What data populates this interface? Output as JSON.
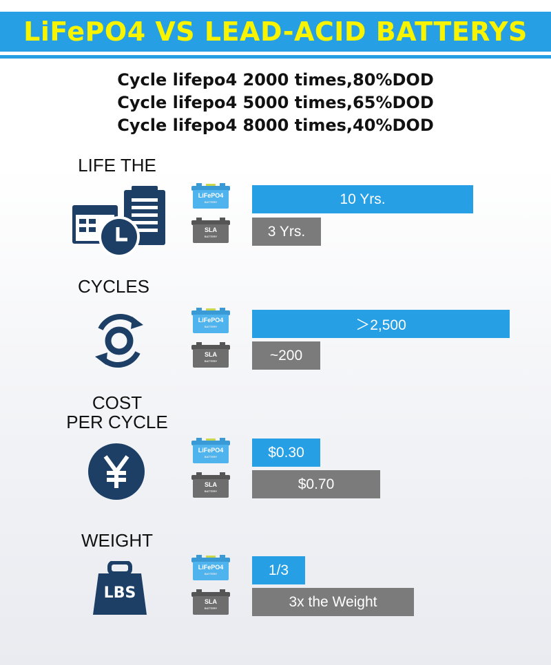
{
  "title": "LiFePO4 VS LEAD-ACID BATTERYS",
  "subtitle_lines": [
    "Cycle lifepo4 2000 times,80%DOD",
    "Cycle lifepo4 5000 times,65%DOD",
    "Cycle lifepo4 8000 times,40%DOD"
  ],
  "battery_labels": {
    "lifepo4": "LiFePO4",
    "sla": "SLA",
    "sub": "BATTERY"
  },
  "colors": {
    "lifepo4": "#279fe5",
    "sla": "#7b7b7b",
    "icon": "#1d3f66",
    "title": "#f8f400"
  },
  "sections": [
    {
      "label": "LIFE THE",
      "icon": "calendar-clipboard-clock-icon",
      "lifepo4": "10 Yrs.",
      "sla": "3 Yrs."
    },
    {
      "label": "CYCLES",
      "icon": "cycle-icon",
      "lifepo4": "＞2,500",
      "sla": "~200"
    },
    {
      "label_line1": "COST",
      "label_line2": "PER CYCLE",
      "icon": "yen-coin-icon",
      "lifepo4": "$0.30",
      "sla": "$0.70"
    },
    {
      "label": "WEIGHT",
      "icon": "weight-lbs-icon",
      "icon_text": "LBS",
      "lifepo4": "1/3",
      "sla": "3x the Weight"
    }
  ],
  "chart_data": {
    "type": "bar",
    "orientation": "horizontal",
    "categories": [
      "LIFE THE",
      "CYCLES",
      "COST PER CYCLE",
      "WEIGHT"
    ],
    "series": [
      {
        "name": "LiFePO4",
        "values": [
          10,
          2500,
          0.3,
          1
        ],
        "labels": [
          "10 Yrs.",
          "＞2,500",
          "$0.30",
          "1/3"
        ]
      },
      {
        "name": "SLA",
        "values": [
          3,
          200,
          0.7,
          3
        ],
        "labels": [
          "3 Yrs.",
          "~200",
          "$0.70",
          "3x the Weight"
        ]
      }
    ]
  }
}
